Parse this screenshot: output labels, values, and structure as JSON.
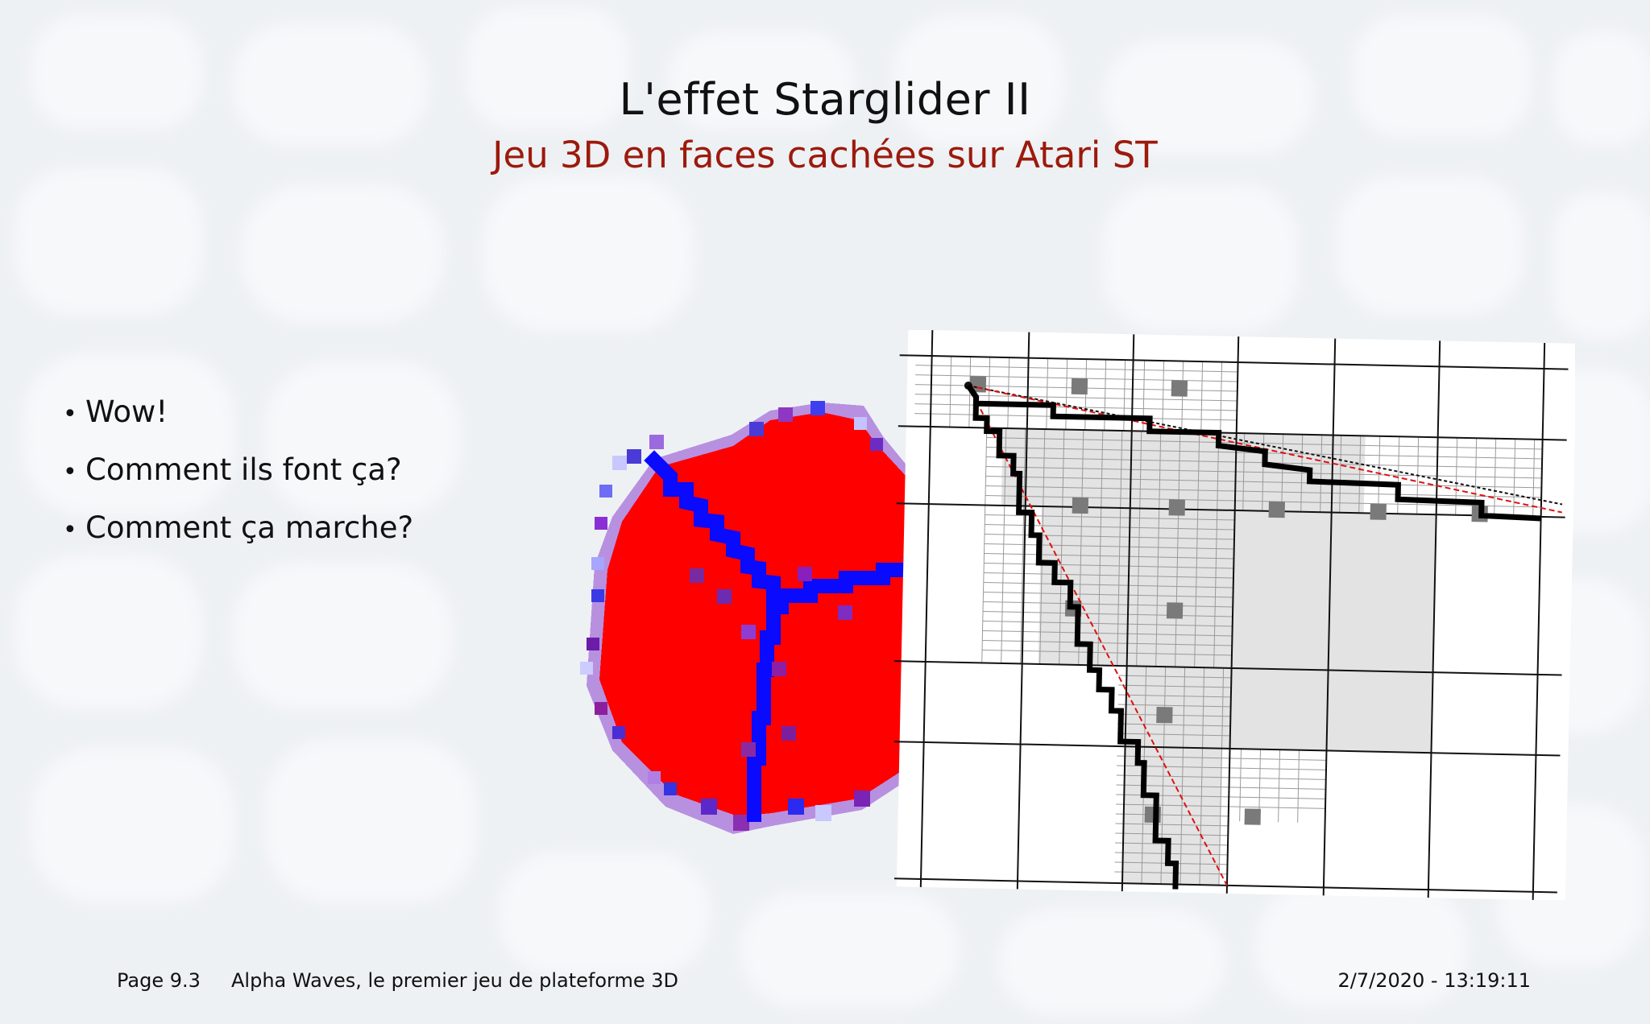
{
  "slide": {
    "title": "L'effet Starglider II",
    "subtitle": "Jeu 3D en faces cachées sur Atari ST"
  },
  "bullets": [
    "Wow!",
    "Comment ils font ça?",
    "Comment ça marche?"
  ],
  "footer": {
    "page": "Page 9.3",
    "presentation_title": "Alpha Waves, le premier jeu de plateforme 3D",
    "datetime": "2/7/2020 - 13:19:11"
  },
  "colors": {
    "title": "#111111",
    "subtitle": "#9c1a0c",
    "cube_face": "#ff0000",
    "cube_edge": "#0a0aff",
    "grid_line": "#111111",
    "ideal_edge": "#e01010"
  },
  "images": {
    "cube": "pixelated-red-cube",
    "grid": "rasterization-grid-diagram"
  }
}
